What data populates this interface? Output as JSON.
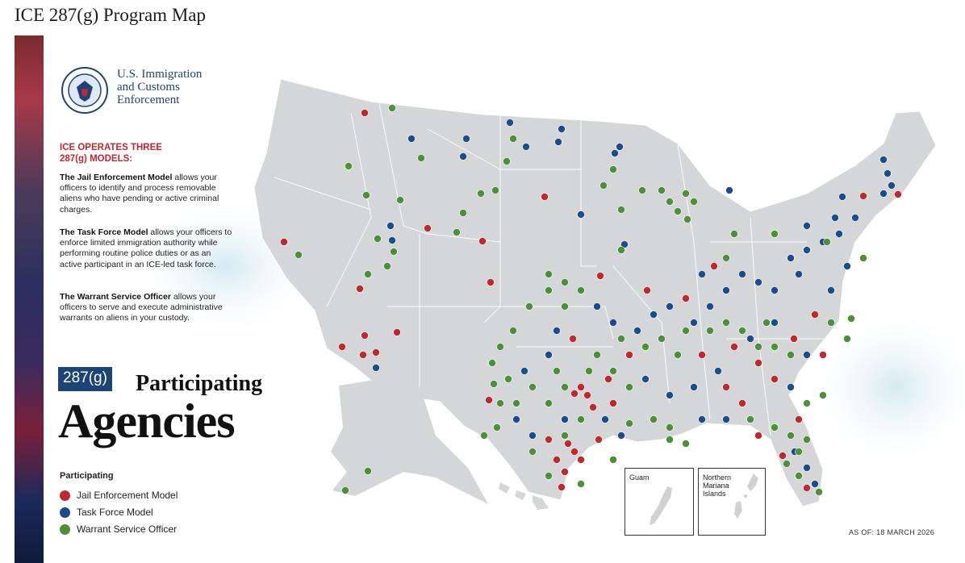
{
  "title": "ICE 287(g) Program Map",
  "agency": {
    "logo": "dhs-seal-icon",
    "name_lines": [
      "U.S. Immigration",
      "and Customs",
      "Enforcement"
    ]
  },
  "models_heading": "ICE OPERATES THREE 287(g) MODELS:",
  "models": [
    {
      "name": "The Jail Enforcement Model",
      "text": " allows your officers to identify and process removable aliens who have pending or active criminal charges."
    },
    {
      "name": "The Task Force Model",
      "text": " allows your officers to enforce limited immigration authority while performing routine police duties or as an active participant in an ICE-led task force."
    },
    {
      "name": "The Warrant Service Officer",
      "text": " allows your officers to serve and execute administrative warrants on aliens in your custody."
    }
  ],
  "headline": {
    "badge": "287(g)",
    "word1": "Participating",
    "word2": "Agencies"
  },
  "legend": {
    "title": "Participating",
    "items": [
      {
        "label": "Jail Enforcement Model",
        "color": "#c0282f"
      },
      {
        "label": "Task Force Model",
        "color": "#1d4c8a"
      },
      {
        "label": "Warrant Service Officer",
        "color": "#4e8f3a"
      }
    ]
  },
  "insets": {
    "guam": "Guam",
    "nmi": "Northern Mariana Islands"
  },
  "as_of": "AS OF: 18 MARCH 2026"
}
